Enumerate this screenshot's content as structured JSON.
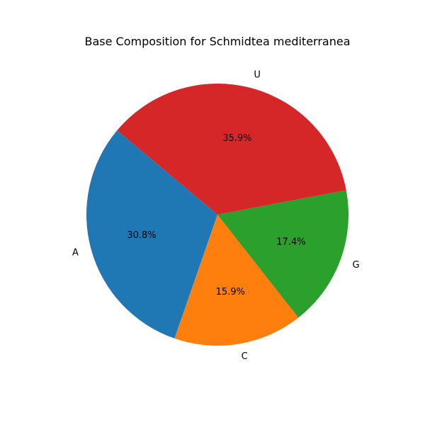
{
  "chart_data": {
    "type": "pie",
    "title": "Base Composition for Schmidtea mediterranea",
    "slices": [
      {
        "label": "A",
        "percent": 30.8,
        "percent_label": "30.8%",
        "color": "#1f77b4"
      },
      {
        "label": "C",
        "percent": 15.9,
        "percent_label": "15.9%",
        "color": "#ff7f0e"
      },
      {
        "label": "G",
        "percent": 17.4,
        "percent_label": "17.4%",
        "color": "#2ca02c"
      },
      {
        "label": "U",
        "percent": 35.9,
        "percent_label": "35.9%",
        "color": "#d62728"
      }
    ],
    "start_angle_deg": 140,
    "direction": "counterclockwise",
    "legend": "none"
  }
}
